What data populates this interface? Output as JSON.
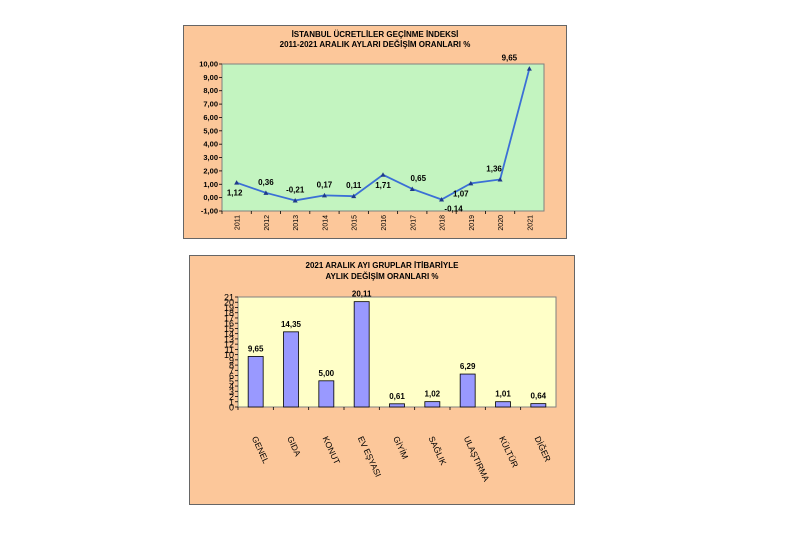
{
  "chart_data": [
    {
      "type": "line",
      "title": "İSTANBUL ÜCRETLİLER GEÇİNME İNDEKSİ",
      "subtitle": "2011-2021 ARALIK AYLARI DEĞİŞİM ORANLARI %",
      "categories": [
        "2011",
        "2012",
        "2013",
        "2014",
        "2015",
        "2016",
        "2017",
        "2018",
        "2019",
        "2020",
        "2021"
      ],
      "values": [
        1.12,
        0.36,
        -0.21,
        0.17,
        0.11,
        1.71,
        0.65,
        -0.14,
        1.07,
        1.36,
        9.65
      ],
      "data_labels": [
        "1,12",
        "0,36",
        "-0,21",
        "0,17",
        "0,11",
        "1,71",
        "0,65",
        "-0,14",
        "1,07",
        "1,36",
        "9,65"
      ],
      "y_ticks": [
        "-1,00",
        "0,00",
        "1,00",
        "2,00",
        "3,00",
        "4,00",
        "5,00",
        "6,00",
        "7,00",
        "8,00",
        "9,00",
        "10,00"
      ],
      "ylim": [
        -1,
        10
      ],
      "plot_color": "#c3f4c0",
      "line_color": "#3b6fd6",
      "grid": false,
      "legend": "none"
    },
    {
      "type": "bar",
      "title": "2021 ARALIK AYI GRUPLAR İTİBARİYLE",
      "subtitle": "AYLIK DEĞİŞİM ORANLARI %",
      "categories": [
        "GENEL",
        "GIDA",
        "KONUT",
        "EV EŞYASI",
        "GİYİM",
        "SAĞLIK",
        "ULAŞTIRMA",
        "KÜLTÜR",
        "DİĞER"
      ],
      "values": [
        9.65,
        14.35,
        5.0,
        20.11,
        0.61,
        1.02,
        6.29,
        1.01,
        0.64
      ],
      "data_labels": [
        "9,65",
        "14,35",
        "5,00",
        "20,11",
        "0,61",
        "1,02",
        "6,29",
        "1,01",
        "0,64"
      ],
      "y_ticks": [
        "0",
        "1",
        "2",
        "3",
        "4",
        "5",
        "6",
        "7",
        "8",
        "9",
        "10",
        "11",
        "12",
        "13",
        "14",
        "15",
        "16",
        "17",
        "18",
        "19",
        "20",
        "21"
      ],
      "ylim": [
        0,
        21
      ],
      "plot_color": "#ffffc8",
      "bar_color": "#9999ff",
      "grid": false,
      "legend": "none"
    }
  ]
}
